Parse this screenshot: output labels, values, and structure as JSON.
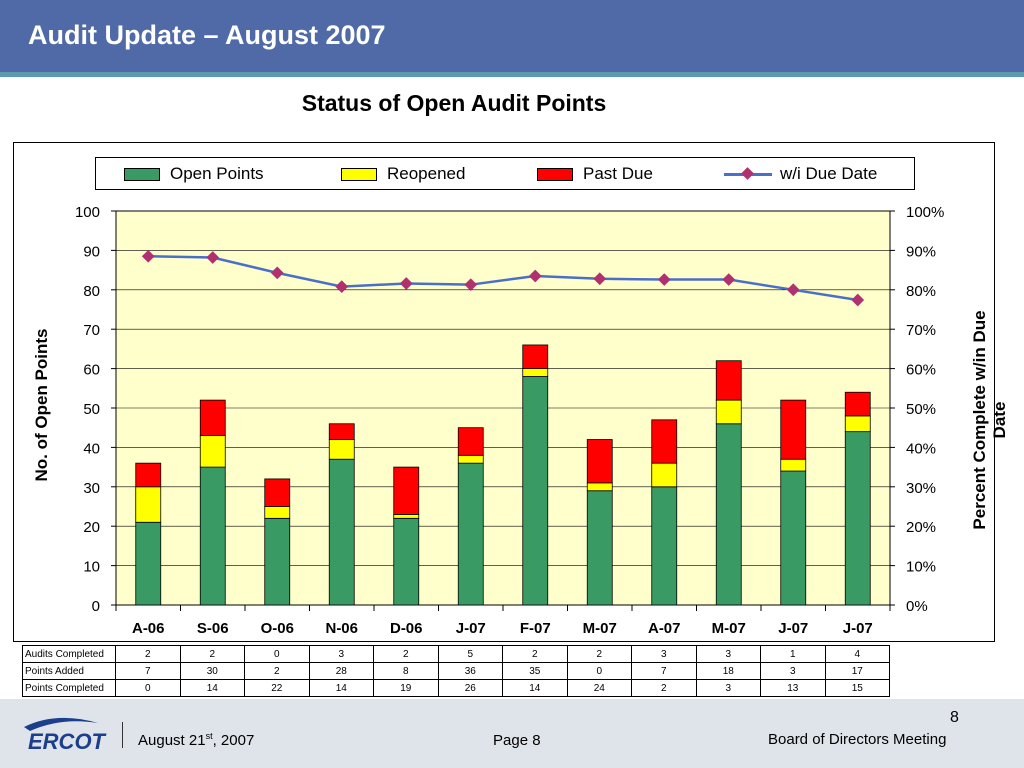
{
  "header": {
    "title": "Audit Update – August 2007"
  },
  "chart_data": {
    "type": "bar",
    "stacked": true,
    "title": "Status of Open Audit Points",
    "categories": [
      "A-06",
      "S-06",
      "O-06",
      "N-06",
      "D-06",
      "J-07",
      "F-07",
      "M-07",
      "A-07",
      "M-07",
      "J-07",
      "J-07"
    ],
    "series": [
      {
        "name": "Open Points",
        "color": "#3a9a64",
        "values": [
          21,
          35,
          22,
          37,
          22,
          36,
          58,
          29,
          30,
          46,
          34,
          44
        ]
      },
      {
        "name": "Reopened",
        "color": "#ffff00",
        "values": [
          9,
          8,
          3,
          5,
          1,
          2,
          2,
          2,
          6,
          6,
          3,
          4
        ]
      },
      {
        "name": "Past Due",
        "color": "#ff0000",
        "values": [
          6,
          9,
          7,
          4,
          12,
          7,
          6,
          11,
          11,
          10,
          15,
          6
        ]
      }
    ],
    "line_series": {
      "name": "w/i Due Date",
      "color": "#4a6fc9",
      "marker_color": "#b03070",
      "values": [
        88.5,
        88.2,
        84.3,
        80.8,
        81.6,
        81.3,
        83.5,
        82.8,
        82.6,
        82.6,
        80.0,
        77.4
      ],
      "axis": "right"
    },
    "ylabel": "No. of Open Points",
    "ylabel_right": "Percent Complete w/in Due Date",
    "ylim": [
      0,
      100
    ],
    "yticks": [
      0,
      10,
      20,
      30,
      40,
      50,
      60,
      70,
      80,
      90,
      100
    ],
    "ylim_right": [
      0,
      100
    ],
    "yticks_right": [
      "0%",
      "10%",
      "20%",
      "30%",
      "40%",
      "50%",
      "60%",
      "70%",
      "80%",
      "90%",
      "100%"
    ],
    "grid": true,
    "legend_position": "top",
    "plot_background": "#ffffcc"
  },
  "table": {
    "rows": [
      {
        "label": "Audits Completed",
        "values": [
          "2",
          "2",
          "0",
          "3",
          "2",
          "5",
          "2",
          "2",
          "3",
          "3",
          "1",
          "4"
        ]
      },
      {
        "label": "Points Added",
        "values": [
          "7",
          "30",
          "2",
          "28",
          "8",
          "36",
          "35",
          "0",
          "7",
          "18",
          "3",
          "17"
        ]
      },
      {
        "label": "Points Completed",
        "values": [
          "0",
          "14",
          "22",
          "14",
          "19",
          "26",
          "14",
          "24",
          "2",
          "3",
          "13",
          "15"
        ]
      }
    ]
  },
  "footer": {
    "logo": "ERCOT",
    "date_prefix": "August 21",
    "date_sup": "st",
    "date_suffix": ", 2007",
    "page": "Page 8",
    "meeting": "Board of Directors Meeting",
    "slide_number": "8"
  }
}
